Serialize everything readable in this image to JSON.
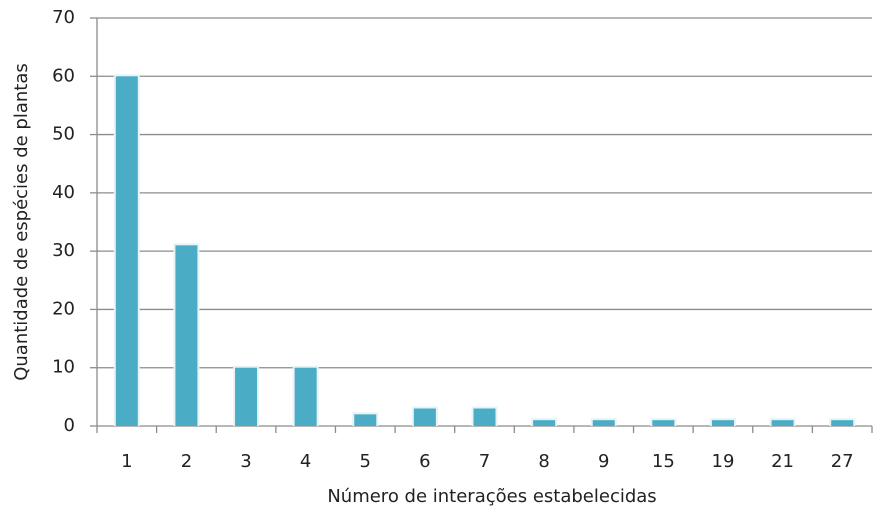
{
  "chart_data": {
    "type": "bar",
    "x_label": "Número de interações estabelecidas",
    "y_label": "Quantidade de espécies de plantas",
    "categories": [
      "1",
      "2",
      "3",
      "4",
      "5",
      "6",
      "7",
      "8",
      "9",
      "15",
      "19",
      "21",
      "27"
    ],
    "values": [
      60,
      31,
      10,
      10,
      2,
      3,
      3,
      1,
      1,
      1,
      1,
      1,
      1
    ],
    "color": "#4bacc6",
    "ylim": [
      0,
      70
    ],
    "yticks": [
      0,
      10,
      20,
      30,
      40,
      50,
      60,
      70
    ],
    "grid": true
  }
}
